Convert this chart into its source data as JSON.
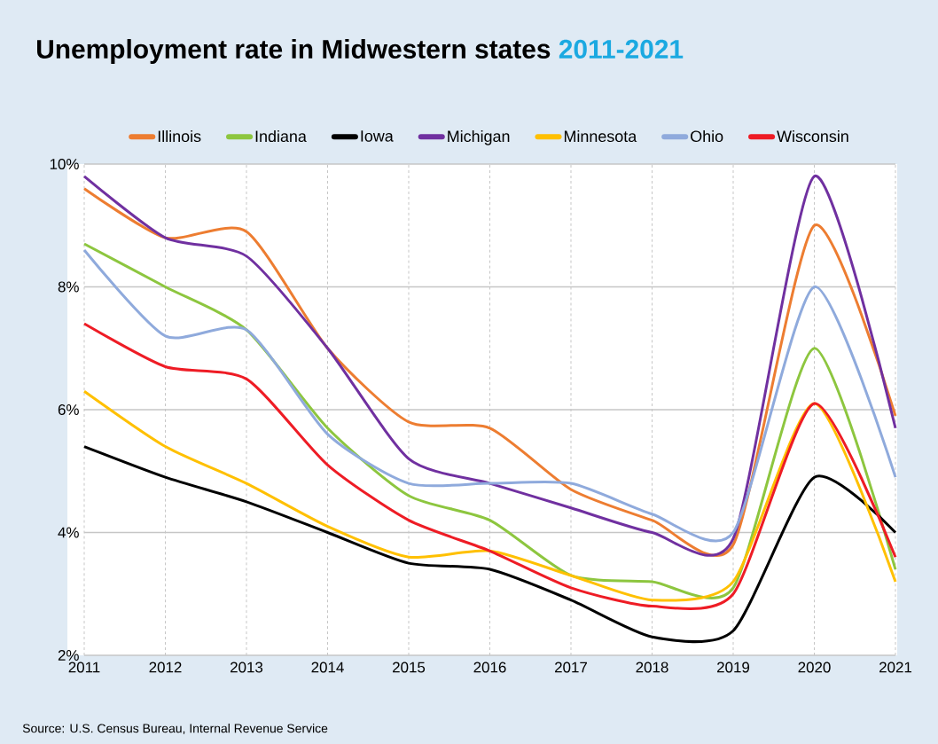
{
  "chart_data": {
    "type": "line",
    "title": "Unemployment rate in Midwestern states",
    "subtitle": "2011-2021",
    "x": [
      2011,
      2012,
      2013,
      2014,
      2015,
      2016,
      2017,
      2018,
      2019,
      2020,
      2021
    ],
    "xlim": [
      2011,
      2021
    ],
    "xticks": [
      2011,
      2012,
      2013,
      2014,
      2015,
      2016,
      2017,
      2018,
      2019,
      2020,
      2021
    ],
    "ylim": [
      2,
      10
    ],
    "yticks": [
      {
        "value": 2,
        "label": "2%"
      },
      {
        "value": 4,
        "label": "4%"
      },
      {
        "value": 6,
        "label": "6%"
      },
      {
        "value": 8,
        "label": "8%"
      },
      {
        "value": 10,
        "label": "10%"
      }
    ],
    "grid": true,
    "legend": "top",
    "series": [
      {
        "name": "Illinois",
        "color": "#ed7d31",
        "values": [
          9.6,
          8.8,
          8.9,
          7.0,
          5.8,
          5.7,
          4.7,
          4.2,
          3.8,
          9.0,
          5.9
        ]
      },
      {
        "name": "Indiana",
        "color": "#8dc63f",
        "values": [
          8.7,
          8.0,
          7.3,
          5.7,
          4.6,
          4.2,
          3.3,
          3.2,
          3.1,
          7.0,
          3.4
        ]
      },
      {
        "name": "Iowa",
        "color": "#000000",
        "values": [
          5.4,
          4.9,
          4.5,
          4.0,
          3.5,
          3.4,
          2.9,
          2.3,
          2.4,
          4.9,
          4.0
        ]
      },
      {
        "name": "Michigan",
        "color": "#7030a0",
        "values": [
          9.8,
          8.8,
          8.5,
          7.0,
          5.2,
          4.8,
          4.4,
          4.0,
          3.9,
          9.8,
          5.7
        ]
      },
      {
        "name": "Minnesota",
        "color": "#ffc000",
        "values": [
          6.3,
          5.4,
          4.8,
          4.1,
          3.6,
          3.7,
          3.3,
          2.9,
          3.2,
          6.1,
          3.2
        ]
      },
      {
        "name": "Ohio",
        "color": "#8faadc",
        "values": [
          8.6,
          7.2,
          7.3,
          5.6,
          4.8,
          4.8,
          4.8,
          4.3,
          4.0,
          8.0,
          4.9
        ]
      },
      {
        "name": "Wisconsin",
        "color": "#ee1c25",
        "values": [
          7.4,
          6.7,
          6.5,
          5.1,
          4.2,
          3.7,
          3.1,
          2.8,
          3.0,
          6.1,
          3.6
        ]
      }
    ],
    "annotations": [
      "Source: U.S. Census Bureau, Internal Revenue Service"
    ]
  }
}
